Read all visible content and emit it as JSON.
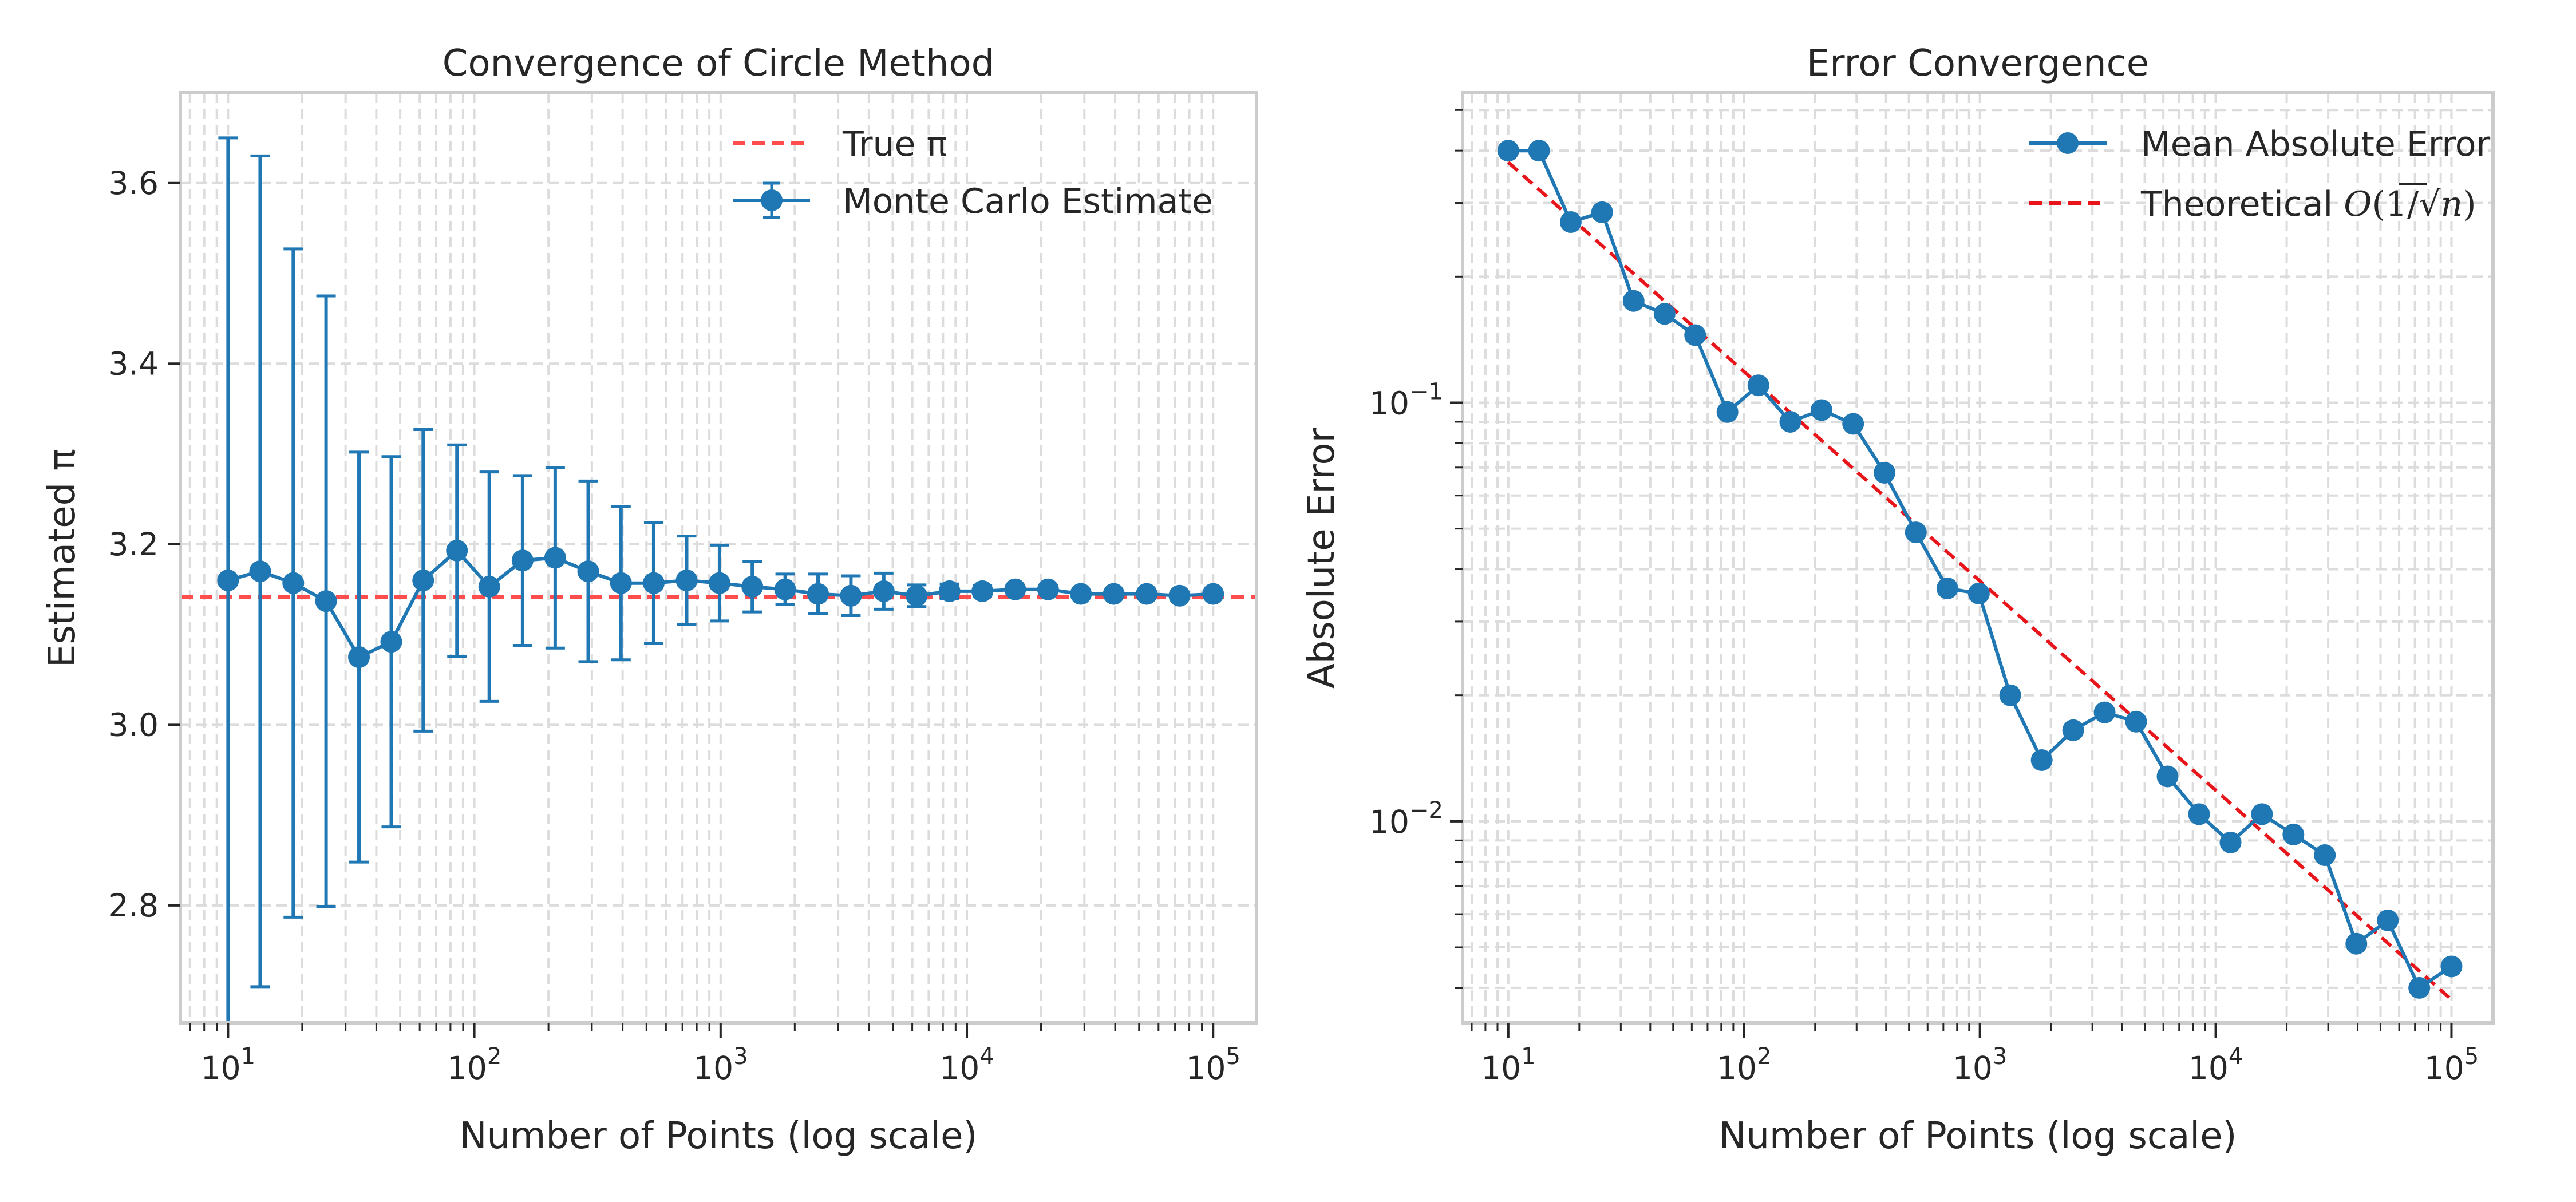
{
  "chart_data": [
    {
      "type": "line",
      "title": "Convergence of Circle Method",
      "xlabel": "Number of Points (log scale)",
      "ylabel": "Estimated π",
      "xscale": "log",
      "xlim": [
        6.4,
        150000
      ],
      "ylim": [
        2.67,
        3.7
      ],
      "xticks": [
        {
          "base": "10",
          "exp": "1"
        },
        {
          "base": "10",
          "exp": "2"
        },
        {
          "base": "10",
          "exp": "3"
        },
        {
          "base": "10",
          "exp": "4"
        },
        {
          "base": "10",
          "exp": "5"
        }
      ],
      "yticks": [
        "2.8",
        "3.0",
        "3.2",
        "3.4",
        "3.6"
      ],
      "reference_line": {
        "name": "True π",
        "value": 3.14159,
        "color": "#ff4d4d"
      },
      "series": [
        {
          "name": "Monte Carlo Estimate",
          "color": "#1f77b4",
          "x": [
            10,
            13.5,
            18.4,
            25,
            34,
            46,
            62,
            85,
            115,
            157,
            213,
            290,
            394,
            535,
            728,
            990,
            1345,
            1829,
            2487,
            3381,
            4597,
            6251,
            8500,
            11560,
            15710,
            21360,
            29040,
            39490,
            53700,
            73000,
            100000
          ],
          "y": [
            3.16,
            3.17,
            3.157,
            3.137,
            3.075,
            3.092,
            3.16,
            3.193,
            3.153,
            3.182,
            3.185,
            3.17,
            3.157,
            3.157,
            3.16,
            3.157,
            3.153,
            3.15,
            3.145,
            3.143,
            3.148,
            3.143,
            3.148,
            3.148,
            3.15,
            3.15,
            3.145,
            3.145,
            3.145,
            3.143,
            3.145
          ],
          "err": [
            0.49,
            0.46,
            0.37,
            0.338,
            0.227,
            0.205,
            0.167,
            0.117,
            0.127,
            0.094,
            0.1,
            0.1,
            0.085,
            0.067,
            0.049,
            0.042,
            0.028,
            0.017,
            0.022,
            0.022,
            0.02,
            0.012,
            0.008,
            0.006,
            0.004,
            0.004,
            0.004,
            0.003,
            0.003,
            0.003,
            0.003
          ]
        }
      ],
      "legend": "top-right",
      "grid": true
    },
    {
      "type": "line",
      "title": "Error Convergence",
      "xlabel": "Number of Points (log scale)",
      "ylabel": "Absolute Error",
      "xscale": "log",
      "yscale": "log",
      "xlim": [
        6.4,
        150000
      ],
      "ylim": [
        0.0033,
        0.55
      ],
      "xticks": [
        {
          "base": "10",
          "exp": "1"
        },
        {
          "base": "10",
          "exp": "2"
        },
        {
          "base": "10",
          "exp": "3"
        },
        {
          "base": "10",
          "exp": "4"
        },
        {
          "base": "10",
          "exp": "5"
        }
      ],
      "yticks": [
        {
          "base": "10",
          "exp": "−2"
        },
        {
          "base": "10",
          "exp": "−1"
        }
      ],
      "series": [
        {
          "name": "Mean Absolute Error",
          "color": "#1f77b4",
          "x": [
            10,
            13.5,
            18.4,
            25,
            34,
            46,
            62,
            85,
            115,
            157,
            213,
            290,
            394,
            535,
            728,
            990,
            1345,
            1829,
            2487,
            3381,
            4597,
            6251,
            8500,
            11560,
            15710,
            21360,
            29040,
            39490,
            53700,
            73000,
            100000
          ],
          "y": [
            0.4,
            0.4,
            0.27,
            0.285,
            0.175,
            0.163,
            0.145,
            0.095,
            0.11,
            0.09,
            0.096,
            0.089,
            0.068,
            0.049,
            0.036,
            0.035,
            0.02,
            0.014,
            0.0165,
            0.0182,
            0.0173,
            0.0128,
            0.0104,
            0.0089,
            0.0104,
            0.0093,
            0.0083,
            0.0051,
            0.0058,
            0.004,
            0.0045
          ]
        },
        {
          "name": "Theoretical",
          "legend_math": {
            "O": "O",
            "open": "(1/√",
            "n": "n",
            "close": ")"
          },
          "color": "#e8151b",
          "dashed": true,
          "x": [
            10,
            100000
          ],
          "y": [
            0.375,
            0.00375
          ]
        }
      ],
      "legend": "top-right",
      "grid": true
    }
  ]
}
